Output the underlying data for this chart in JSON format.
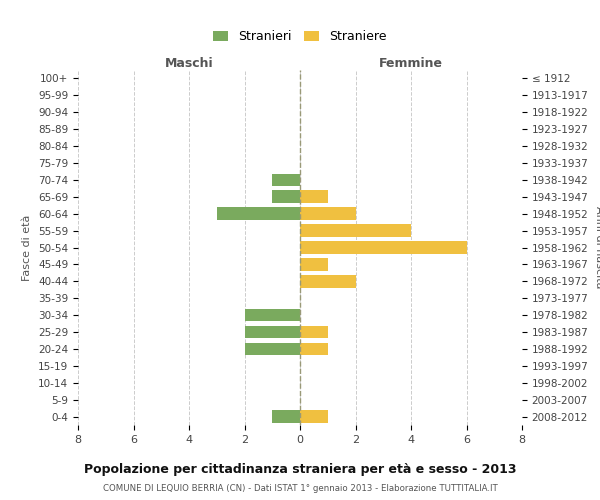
{
  "age_groups": [
    "100+",
    "95-99",
    "90-94",
    "85-89",
    "80-84",
    "75-79",
    "70-74",
    "65-69",
    "60-64",
    "55-59",
    "50-54",
    "45-49",
    "40-44",
    "35-39",
    "30-34",
    "25-29",
    "20-24",
    "15-19",
    "10-14",
    "5-9",
    "0-4"
  ],
  "birth_years": [
    "≤ 1912",
    "1913-1917",
    "1918-1922",
    "1923-1927",
    "1928-1932",
    "1933-1937",
    "1938-1942",
    "1943-1947",
    "1948-1952",
    "1953-1957",
    "1958-1962",
    "1963-1967",
    "1968-1972",
    "1973-1977",
    "1978-1982",
    "1983-1987",
    "1988-1992",
    "1993-1997",
    "1998-2002",
    "2003-2007",
    "2008-2012"
  ],
  "maschi": [
    0,
    0,
    0,
    0,
    0,
    0,
    1,
    1,
    3,
    0,
    0,
    0,
    0,
    0,
    2,
    2,
    2,
    0,
    0,
    0,
    1
  ],
  "femmine": [
    0,
    0,
    0,
    0,
    0,
    0,
    0,
    1,
    2,
    4,
    6,
    1,
    2,
    0,
    0,
    1,
    1,
    0,
    0,
    0,
    1
  ],
  "color_maschi": "#7aaa5e",
  "color_femmine": "#f0c040",
  "title": "Popolazione per cittadinanza straniera per età e sesso - 2013",
  "subtitle": "COMUNE DI LEQUIO BERRIA (CN) - Dati ISTAT 1° gennaio 2013 - Elaborazione TUTTITALIA.IT",
  "xlabel_left": "Maschi",
  "xlabel_right": "Femmine",
  "ylabel_left": "Fasce di età",
  "ylabel_right": "Anni di nascita",
  "xlim": 8,
  "legend_stranieri": "Stranieri",
  "legend_straniere": "Straniere",
  "grid_color": "#cccccc",
  "background_color": "#ffffff",
  "bar_height": 0.75
}
